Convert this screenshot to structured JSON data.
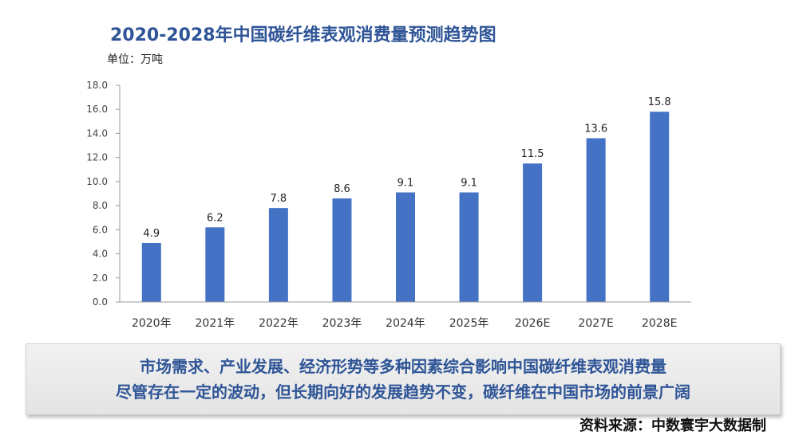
{
  "chart_data": {
    "type": "bar",
    "title": "2020-2028年中国碳纤维表观消费量预测趋势图",
    "unit_label": "单位：万吨",
    "categories": [
      "2020年",
      "2021年",
      "2022年",
      "2023年",
      "2024年",
      "2025年",
      "2026E",
      "2027E",
      "2028E"
    ],
    "values": [
      4.9,
      6.2,
      7.8,
      8.6,
      9.1,
      9.1,
      11.5,
      13.6,
      15.8
    ],
    "value_labels": [
      "4.9",
      "6.2",
      "7.8",
      "8.6",
      "9.1",
      "9.1",
      "11.5",
      "13.6",
      "15.8"
    ],
    "ylim": [
      0,
      18
    ],
    "yticks": [
      "0.0",
      "2.0",
      "4.0",
      "6.0",
      "8.0",
      "10.0",
      "12.0",
      "14.0",
      "16.0",
      "18.0"
    ],
    "ytick_values": [
      0,
      2,
      4,
      6,
      8,
      10,
      12,
      14,
      16,
      18
    ],
    "grid": false,
    "bar_color": "#4472c4"
  },
  "summary": {
    "line1": "市场需求、产业发展、经济形势等多种因素综合影响中国碳纤维表观消费量",
    "line2": "尽管存在一定的波动，但长期向好的发展趋势不变，碳纤维在中国市场的前景广阔"
  },
  "source": "资料来源：中数寰宇大数据制"
}
